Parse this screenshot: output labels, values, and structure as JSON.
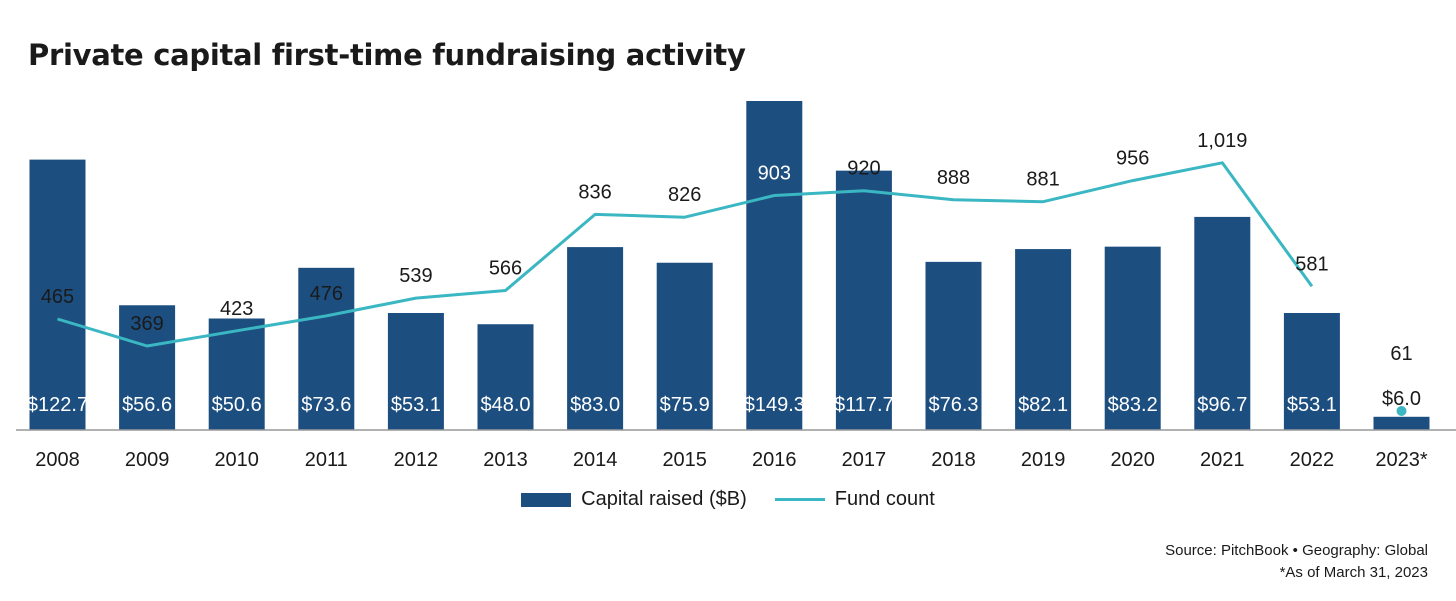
{
  "title": "Private capital first-time fundraising activity",
  "colors": {
    "bar": "#1c4e80",
    "line": "#3ab7c2",
    "axis": "#999999"
  },
  "legend": {
    "bar_label": "Capital raised ($B)",
    "line_label": "Fund count"
  },
  "source": {
    "line1": "Source: PitchBook  •  Geography: Global",
    "line2": "*As of March 31, 2023"
  },
  "chart_data": {
    "type": "bar",
    "categories": [
      "2008",
      "2009",
      "2010",
      "2011",
      "2012",
      "2013",
      "2014",
      "2015",
      "2016",
      "2017",
      "2018",
      "2019",
      "2020",
      "2021",
      "2022",
      "2023*"
    ],
    "series": [
      {
        "name": "Capital raised ($B)",
        "type": "bar",
        "values": [
          122.7,
          56.6,
          50.6,
          73.6,
          53.1,
          48.0,
          83.0,
          75.9,
          149.3,
          117.7,
          76.3,
          82.1,
          83.2,
          96.7,
          53.1,
          6.0
        ],
        "labels": [
          "$122.7",
          "$56.6",
          "$50.6",
          "$73.6",
          "$53.1",
          "$48.0",
          "$83.0",
          "$75.9",
          "$149.3",
          "$117.7",
          "$76.3",
          "$82.1",
          "$83.2",
          "$96.7",
          "$53.1",
          "$6.0"
        ]
      },
      {
        "name": "Fund count",
        "type": "line",
        "values": [
          465,
          369,
          423,
          476,
          539,
          566,
          836,
          826,
          903,
          920,
          888,
          881,
          956,
          1019,
          581,
          61
        ],
        "labels": [
          "465",
          "369",
          "423",
          "476",
          "539",
          "566",
          "836",
          "826",
          "903",
          "920",
          "888",
          "881",
          "956",
          "1,019",
          "581",
          "61"
        ]
      }
    ],
    "legend_position": "bottom-center",
    "grid": false
  }
}
